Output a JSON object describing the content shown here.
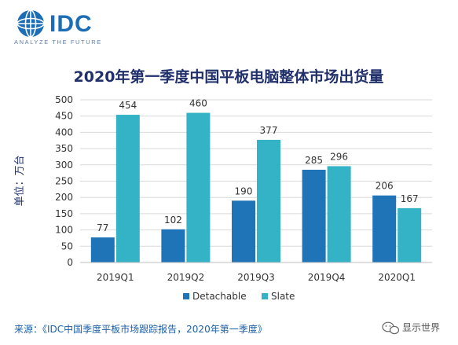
{
  "logo": {
    "word": "IDC",
    "tagline": "ANALYZE THE FUTURE"
  },
  "colors": {
    "detachable": "#1f73b7",
    "slate": "#34b3c7",
    "title": "#21306b",
    "text": "#333333",
    "grid": "#d9d9d9",
    "logo_blue": "#1b6db5",
    "logo_tag": "#5a7fa8",
    "source": "#1b5fa8",
    "watermark": "#555555"
  },
  "chart_data": {
    "type": "bar",
    "title": "2020年第一季度中国平板电脑整体市场出货量",
    "ylabel": "单位：万台",
    "xlabel": "",
    "categories": [
      "2019Q1",
      "2019Q2",
      "2019Q3",
      "2019Q4",
      "2020Q1"
    ],
    "ylim": [
      0,
      500
    ],
    "yticks": [
      0,
      50,
      100,
      150,
      200,
      250,
      300,
      350,
      400,
      450,
      500
    ],
    "grid": true,
    "legend_position": "bottom",
    "series": [
      {
        "name": "Detachable",
        "values": [
          77,
          102,
          190,
          285,
          206
        ],
        "color_key": "detachable"
      },
      {
        "name": "Slate",
        "values": [
          454,
          460,
          377,
          296,
          167
        ],
        "color_key": "slate"
      }
    ]
  },
  "source_note": "来源：《IDC中国季度平板市场跟踪报告，2020年第一季度》",
  "watermark": {
    "icon": "wechat-icon",
    "text": "显示世界"
  }
}
